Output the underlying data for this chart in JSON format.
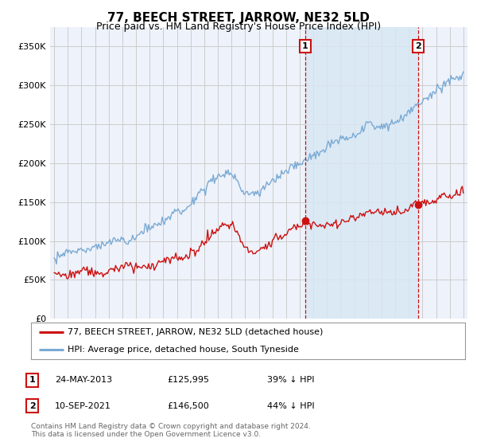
{
  "title": "77, BEECH STREET, JARROW, NE32 5LD",
  "subtitle": "Price paid vs. HM Land Registry's House Price Index (HPI)",
  "ylabel_ticks": [
    "£0",
    "£50K",
    "£100K",
    "£150K",
    "£200K",
    "£250K",
    "£300K",
    "£350K"
  ],
  "ytick_values": [
    0,
    50000,
    100000,
    150000,
    200000,
    250000,
    300000,
    350000
  ],
  "ylim": [
    0,
    375000
  ],
  "xlim_start": 1994.7,
  "xlim_end": 2025.3,
  "hpi_color": "#7aaad4",
  "hpi_fill_color": "#d8e8f5",
  "price_color": "#cc1111",
  "marker1_date": 2013.39,
  "marker1_price": 125995,
  "marker2_date": 2021.69,
  "marker2_price": 146500,
  "legend_line1": "77, BEECH STREET, JARROW, NE32 5LD (detached house)",
  "legend_line2": "HPI: Average price, detached house, South Tyneside",
  "table_row1": [
    "1",
    "24-MAY-2013",
    "£125,995",
    "39% ↓ HPI"
  ],
  "table_row2": [
    "2",
    "10-SEP-2021",
    "£146,500",
    "44% ↓ HPI"
  ],
  "footer": "Contains HM Land Registry data © Crown copyright and database right 2024.\nThis data is licensed under the Open Government Licence v3.0.",
  "bg_color": "#ffffff",
  "plot_bg_color": "#eef2fa",
  "grid_color": "#cccccc",
  "title_fontsize": 11,
  "subtitle_fontsize": 9,
  "tick_fontsize": 8
}
